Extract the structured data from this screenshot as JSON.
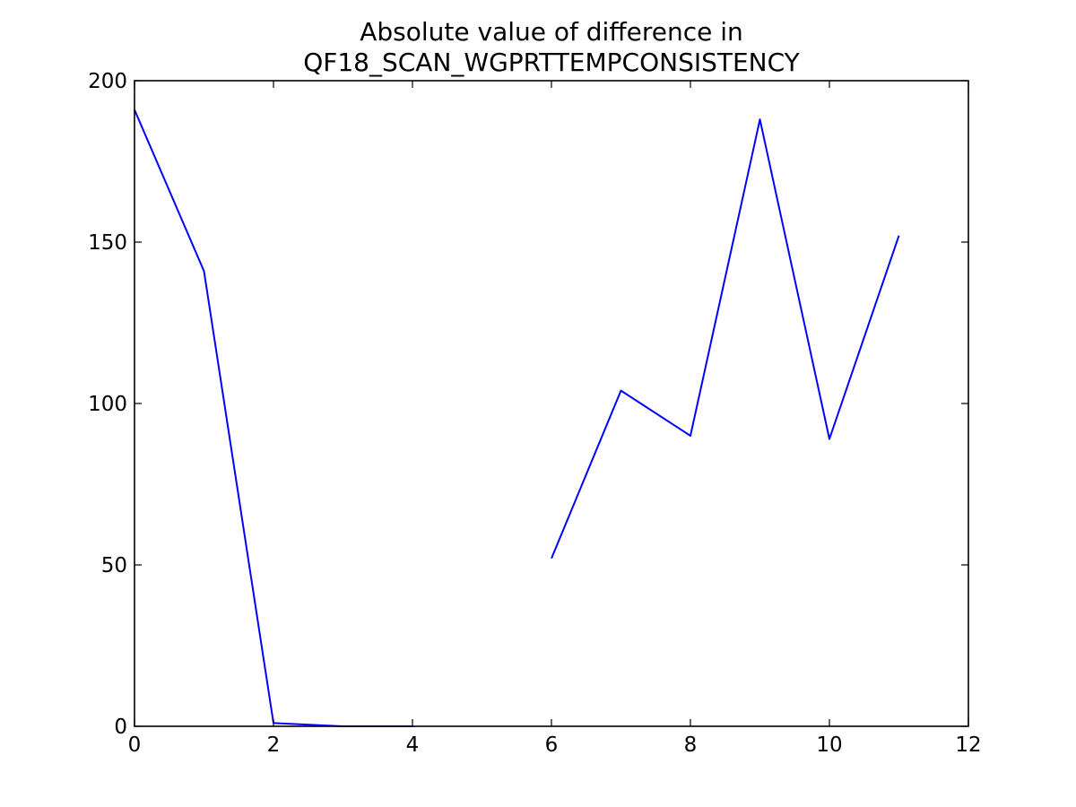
{
  "chart_data": {
    "type": "line",
    "title": [
      "Absolute value of difference in",
      "QF18_SCAN_WGPRTTEMPCONSISTENCY"
    ],
    "xlabel": "",
    "ylabel": "",
    "xlim": [
      0,
      12
    ],
    "ylim": [
      0,
      200
    ],
    "xticks": [
      0,
      2,
      4,
      6,
      8,
      10,
      12
    ],
    "yticks": [
      0,
      50,
      100,
      150,
      200
    ],
    "grid": false,
    "series": [
      {
        "color": "#0000ff",
        "x": [
          0,
          1,
          2,
          3,
          4,
          5,
          6,
          7,
          8,
          9,
          10,
          11
        ],
        "y": [
          191,
          141,
          1,
          0,
          0,
          null,
          52,
          104,
          90,
          188,
          89,
          152
        ]
      }
    ]
  }
}
